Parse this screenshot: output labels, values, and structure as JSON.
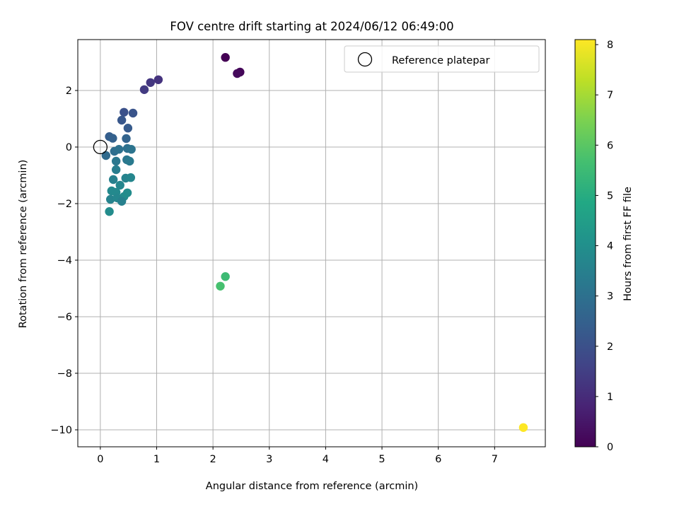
{
  "chart_data": {
    "type": "scatter",
    "title": "FOV centre drift starting at 2024/06/12 06:49:00",
    "xlabel": "Angular distance from reference (arcmin)",
    "ylabel": "Rotation from reference (arcmin)",
    "xlim": [
      -0.4,
      7.9
    ],
    "ylim": [
      -10.6,
      3.8
    ],
    "xticks": [
      0,
      1,
      2,
      3,
      4,
      5,
      6,
      7
    ],
    "yticks": [
      2,
      0,
      -2,
      -4,
      -6,
      -8,
      -10
    ],
    "grid": true,
    "legend": {
      "position": "top-right",
      "label": "Reference platepar"
    },
    "reference_point": {
      "x": 0,
      "y": 0
    },
    "colorbar": {
      "label": "Hours from first FF file",
      "range": [
        0,
        8.1
      ],
      "ticks": [
        0,
        1,
        2,
        3,
        4,
        5,
        6,
        7,
        8
      ],
      "colormap": "viridis"
    },
    "points": [
      {
        "x": 2.22,
        "y": 3.17,
        "c": 0.0
      },
      {
        "x": 2.48,
        "y": 2.65,
        "c": 0.1
      },
      {
        "x": 2.43,
        "y": 2.6,
        "c": 0.2
      },
      {
        "x": 1.03,
        "y": 2.38,
        "c": 1.2
      },
      {
        "x": 0.89,
        "y": 2.28,
        "c": 1.3
      },
      {
        "x": 0.78,
        "y": 2.03,
        "c": 1.4
      },
      {
        "x": 0.42,
        "y": 1.23,
        "c": 2.0
      },
      {
        "x": 0.58,
        "y": 1.2,
        "c": 2.1
      },
      {
        "x": 0.38,
        "y": 0.95,
        "c": 2.2
      },
      {
        "x": 0.49,
        "y": 0.67,
        "c": 2.3
      },
      {
        "x": 0.16,
        "y": 0.37,
        "c": 2.4
      },
      {
        "x": 0.22,
        "y": 0.31,
        "c": 2.5
      },
      {
        "x": 0.46,
        "y": 0.3,
        "c": 2.6
      },
      {
        "x": 0.1,
        "y": -0.3,
        "c": 2.8
      },
      {
        "x": 0.25,
        "y": -0.15,
        "c": 2.9
      },
      {
        "x": 0.33,
        "y": -0.08,
        "c": 3.0
      },
      {
        "x": 0.48,
        "y": -0.05,
        "c": 3.0
      },
      {
        "x": 0.55,
        "y": -0.08,
        "c": 3.1
      },
      {
        "x": 0.28,
        "y": -0.5,
        "c": 3.2
      },
      {
        "x": 0.47,
        "y": -0.45,
        "c": 3.2
      },
      {
        "x": 0.52,
        "y": -0.5,
        "c": 3.3
      },
      {
        "x": 0.28,
        "y": -0.8,
        "c": 3.4
      },
      {
        "x": 0.23,
        "y": -1.15,
        "c": 3.5
      },
      {
        "x": 0.45,
        "y": -1.1,
        "c": 3.6
      },
      {
        "x": 0.54,
        "y": -1.08,
        "c": 3.7
      },
      {
        "x": 0.35,
        "y": -1.35,
        "c": 3.7
      },
      {
        "x": 0.2,
        "y": -1.55,
        "c": 3.8
      },
      {
        "x": 0.28,
        "y": -1.6,
        "c": 3.8
      },
      {
        "x": 0.48,
        "y": -1.62,
        "c": 3.9
      },
      {
        "x": 0.42,
        "y": -1.75,
        "c": 3.9
      },
      {
        "x": 0.18,
        "y": -1.85,
        "c": 3.6
      },
      {
        "x": 0.3,
        "y": -1.8,
        "c": 3.7
      },
      {
        "x": 0.38,
        "y": -1.92,
        "c": 3.5
      },
      {
        "x": 0.16,
        "y": -2.28,
        "c": 3.9
      },
      {
        "x": 2.22,
        "y": -4.58,
        "c": 5.5
      },
      {
        "x": 2.13,
        "y": -4.92,
        "c": 5.7
      },
      {
        "x": 7.51,
        "y": -9.92,
        "c": 8.1
      }
    ]
  }
}
